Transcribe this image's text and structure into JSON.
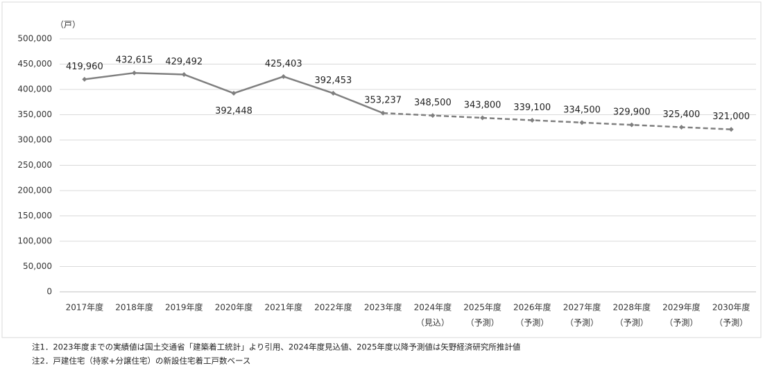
{
  "chart_data": {
    "type": "line",
    "unit_label": "（戸）",
    "categories": [
      "2017年度",
      "2018年度",
      "2019年度",
      "2020年度",
      "2021年度",
      "2022年度",
      "2023年度",
      "2024年度",
      "2025年度",
      "2026年度",
      "2027年度",
      "2028年度",
      "2029年度",
      "2030年度"
    ],
    "category_sublabels": [
      null,
      null,
      null,
      null,
      null,
      null,
      null,
      "（見込）",
      "（予測）",
      "（予測）",
      "（予測）",
      "（予測）",
      "（予測）",
      "（予測）"
    ],
    "values": [
      419960,
      432615,
      429492,
      392448,
      425403,
      392453,
      353237,
      348500,
      343800,
      339100,
      334500,
      329900,
      325400,
      321000
    ],
    "value_labels": [
      "419,960",
      "432,615",
      "429,492",
      "392,448",
      "425,403",
      "392,453",
      "353,237",
      "348,500",
      "343,800",
      "339,100",
      "334,500",
      "329,900",
      "325,400",
      "321,000"
    ],
    "dashed_after_index": 6,
    "color": "#7f7f7f",
    "ylim": [
      0,
      500000
    ],
    "yticks": [
      0,
      {
        "value": 50000,
        "label": "50,000"
      },
      {
        "value": 100000,
        "label": "100,000"
      },
      {
        "value": 150000,
        "label": "150,000"
      },
      {
        "value": 200000,
        "label": "200,000"
      },
      {
        "value": 250000,
        "label": "250,000"
      },
      {
        "value": 300000,
        "label": "300,000"
      },
      {
        "value": 350000,
        "label": "350,000"
      },
      {
        "value": 400000,
        "label": "400,000"
      },
      {
        "value": 450000,
        "label": "450,000"
      },
      {
        "value": 500000,
        "label": "500,000"
      }
    ],
    "grid": true,
    "notes": [
      "注1．2023年度までの実績値は国土交通省「建築着工統計」より引用、2024年度見込値、2025年度以降予測値は矢野経済研究所推計値",
      "注2．戸建住宅（持家+分譲住宅）の新設住宅着工戸数ベース"
    ]
  }
}
